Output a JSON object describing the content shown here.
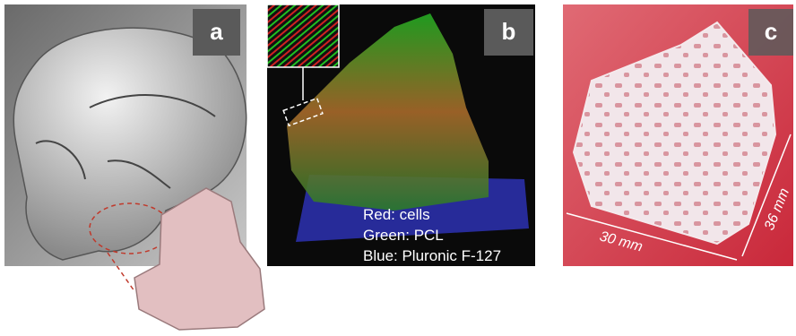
{
  "panels": [
    {
      "label": "a"
    },
    {
      "label": "b",
      "legend": [
        "Red: cells",
        "Green: PCL",
        "Blue: Pluronic F-127"
      ]
    },
    {
      "label": "c",
      "dimensions": [
        "30 mm",
        "36 mm"
      ]
    }
  ]
}
